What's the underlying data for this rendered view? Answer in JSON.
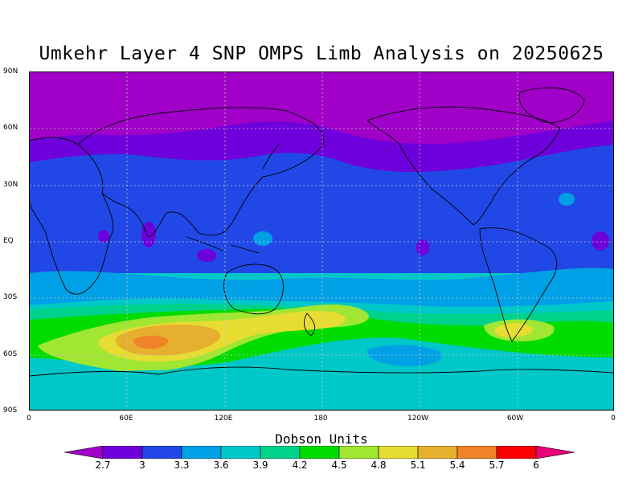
{
  "title": "Umkehr Layer 4 SNP OMPS Limb Analysis on 20250625",
  "map": {
    "projection": "cylindrical-equidistant",
    "lat_labels": [
      "90N",
      "60N",
      "30N",
      "EQ",
      "30S",
      "60S",
      "90S"
    ],
    "lon_labels": [
      "0",
      "60E",
      "120E",
      "180",
      "120W",
      "60W",
      "0"
    ],
    "grid": "dotted",
    "coastlines": true
  },
  "colorbar": {
    "title": "Dobson Units",
    "levels": [
      "2.7",
      "3",
      "3.3",
      "3.6",
      "3.9",
      "4.2",
      "4.5",
      "4.8",
      "5.1",
      "5.4",
      "5.7",
      "6"
    ],
    "colors": [
      "#a000c8",
      "#6e00dc",
      "#2148e6",
      "#00a0e6",
      "#00c8c8",
      "#00d28c",
      "#00dc00",
      "#a0e632",
      "#e6dc32",
      "#e6af2d",
      "#f08228",
      "#fa0000",
      "#e6007a"
    ]
  }
}
